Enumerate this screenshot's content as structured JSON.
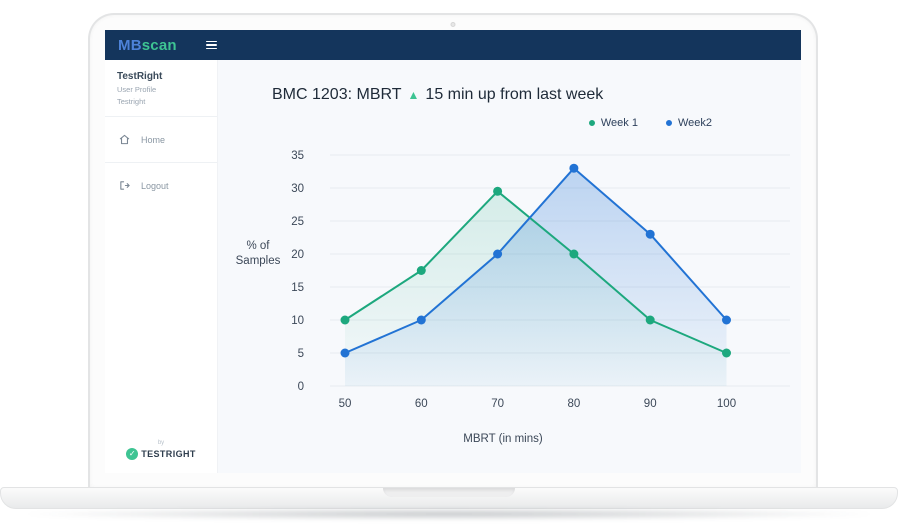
{
  "app": {
    "brand": {
      "part1": "MB",
      "part2": "scan"
    },
    "header_color": "#14355C"
  },
  "sidebar": {
    "profile": {
      "name": "TestRight",
      "line1": "User Profile",
      "line2": "Testright"
    },
    "items": [
      {
        "label": "Home",
        "icon": "home-icon"
      },
      {
        "label": "Logout",
        "icon": "logout-icon"
      }
    ],
    "footer": {
      "by": "by",
      "brand": "TESTRIGHT"
    }
  },
  "main": {
    "title": {
      "prefix": "BMC 1203: MBRT",
      "arrow": "▲",
      "suffix": "15 min up from last week"
    },
    "legend": [
      {
        "label": "Week 1",
        "color": "#1DA87E"
      },
      {
        "label": "Week2",
        "color": "#2273D4"
      }
    ]
  },
  "colors": {
    "accent_green": "#1DA87E",
    "accent_blue": "#2273D4",
    "brand_blue": "#4D82D8",
    "brand_teal": "#3EC493",
    "header_navy": "#14355C",
    "main_background": "#F7F9FC",
    "gridline": "#E7EBF0",
    "tick_text": "#3C4858"
  },
  "chart_data": {
    "type": "line",
    "x": [
      50,
      60,
      70,
      80,
      90,
      100
    ],
    "series": [
      {
        "name": "Week 1",
        "color": "#1DA87E",
        "fill_top": "rgba(34,170,131,0.16)",
        "fill_bottom": "rgba(34,170,131,0.02)",
        "values": [
          10,
          17.5,
          29.5,
          20,
          10,
          5
        ]
      },
      {
        "name": "Week2",
        "color": "#2273D4",
        "fill_top": "rgba(34,115,212,0.28)",
        "fill_bottom": "rgba(34,115,212,0.04)",
        "values": [
          5,
          10,
          20,
          33,
          23,
          10
        ]
      }
    ],
    "title": "BMC 1203: MBRT ▲ 15 min up from last week",
    "xlabel": "MBRT (in mins)",
    "ylabel": "% of Samples",
    "ylabel_lines": [
      "% of",
      "Samples"
    ],
    "xlim": [
      50,
      100
    ],
    "ylim": [
      0,
      35
    ],
    "ytick_step": 5,
    "xticks": [
      "50",
      "60",
      "70",
      "80",
      "90",
      "100"
    ],
    "yticks": [
      "0",
      "5",
      "10",
      "15",
      "20",
      "25",
      "30",
      "35"
    ],
    "grid": true,
    "legend_position": "top-right"
  }
}
